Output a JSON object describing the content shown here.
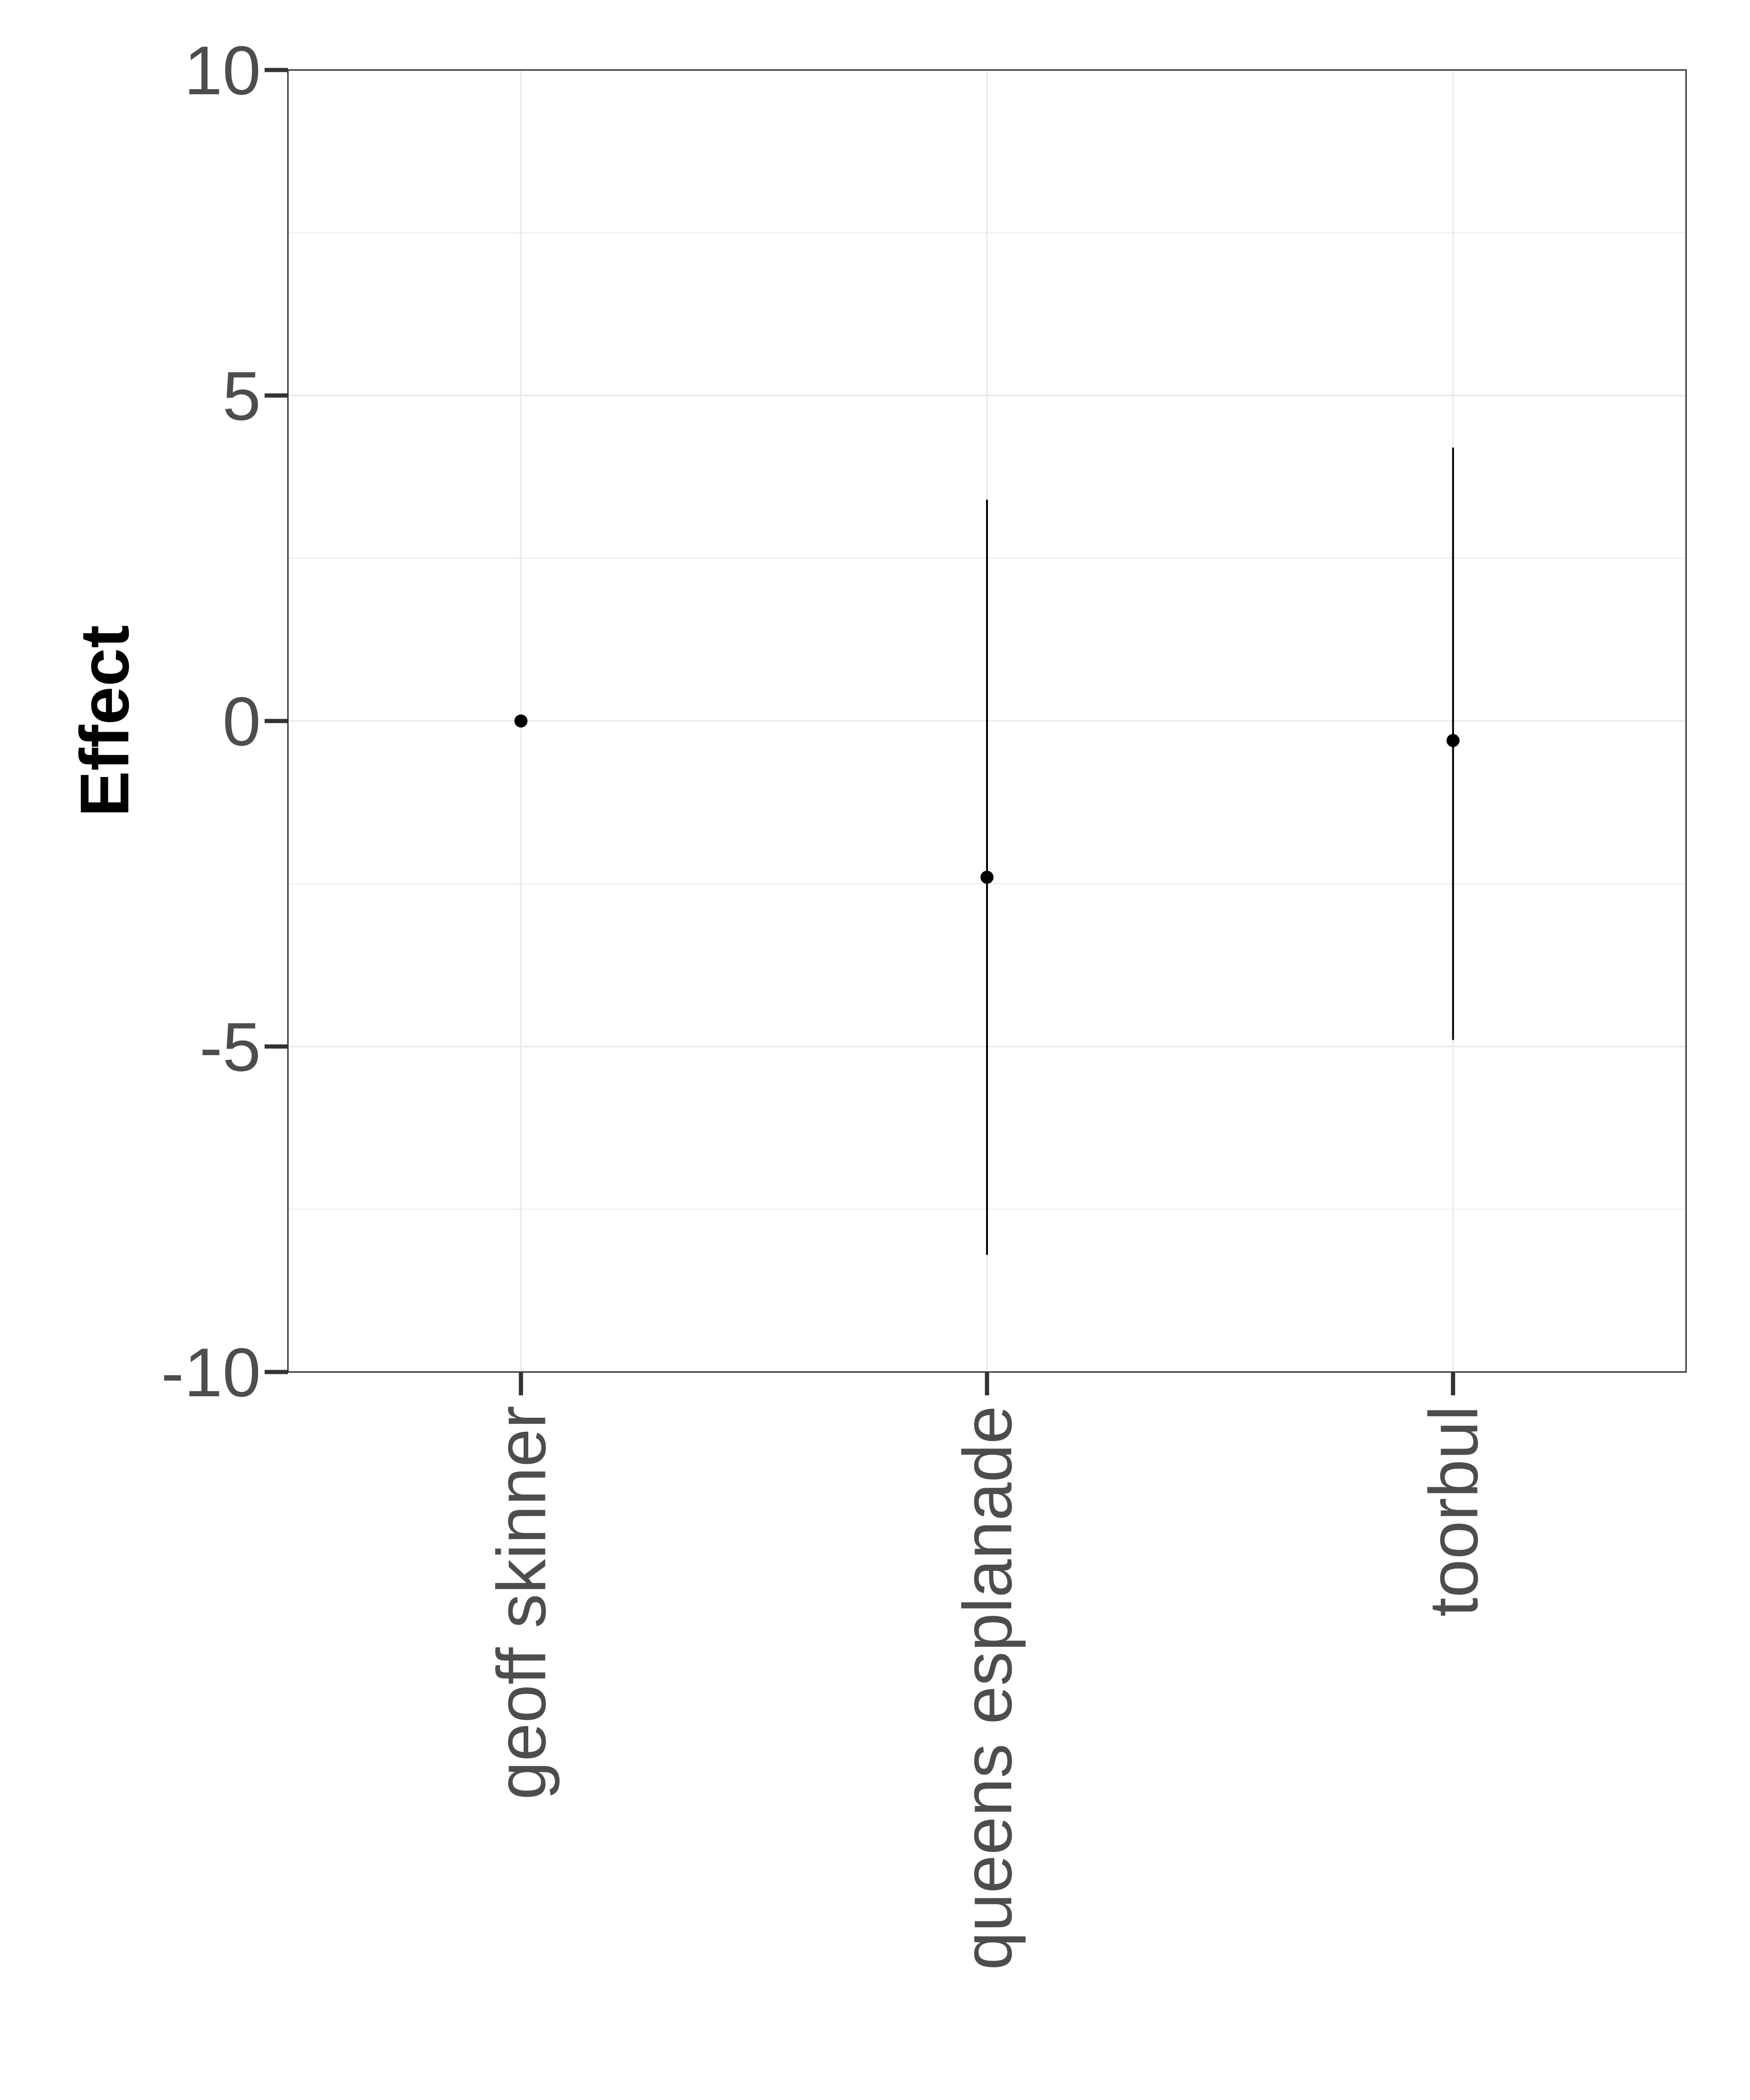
{
  "chart_data": {
    "type": "scatter",
    "title": "",
    "xlabel": "",
    "ylabel": "Effect",
    "ylim": [
      -10,
      10
    ],
    "yticks": [
      -10,
      -5,
      0,
      5,
      10
    ],
    "categories": [
      "geoff skinner",
      "queens esplanade",
      "toorbul"
    ],
    "series": [
      {
        "values": [
          0,
          -2.4,
          -0.3
        ],
        "lower": [
          0,
          -8.2,
          -4.9
        ],
        "upper": [
          0,
          3.4,
          4.2
        ]
      }
    ],
    "grid": true,
    "legend": "none",
    "colors": {
      "point": "#000000",
      "errorbar": "#000000",
      "grid": "#ebebeb",
      "panel_border": "#333333",
      "tick_label": "#4d4d4d"
    }
  }
}
